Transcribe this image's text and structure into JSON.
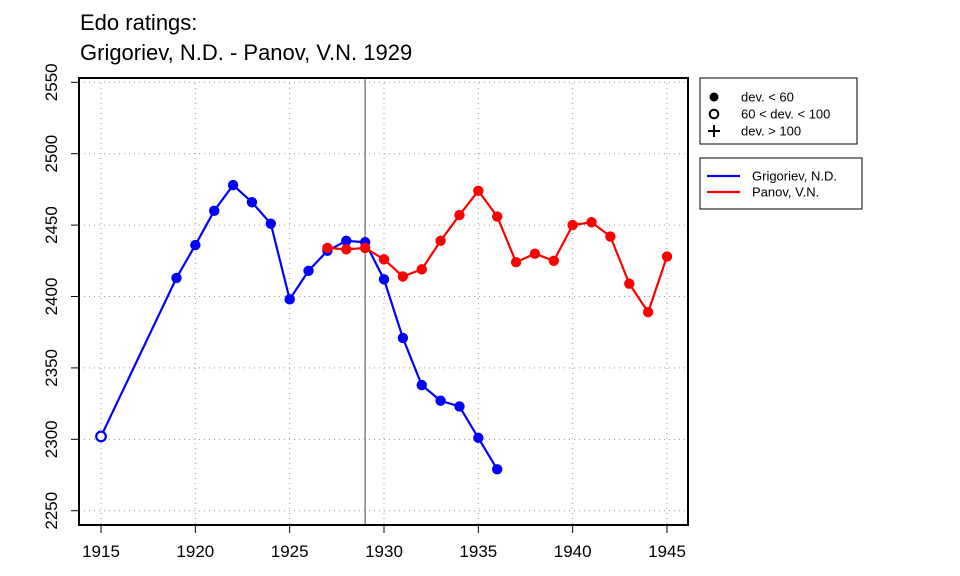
{
  "title": {
    "line1": "Edo ratings:",
    "line2": "Grigoriev, N.D. - Panov, V.N. 1929"
  },
  "chart_data": {
    "type": "line",
    "title": "Edo ratings: Grigoriev, N.D. - Panov, V.N. 1929",
    "xlabel": "",
    "ylabel": "",
    "xlim": [
      1915,
      1945
    ],
    "ylim": [
      2240,
      2553
    ],
    "x_ticks": [
      1915,
      1920,
      1925,
      1930,
      1935,
      1940,
      1945
    ],
    "y_ticks": [
      2250,
      2300,
      2350,
      2400,
      2450,
      2500,
      2550
    ],
    "grid": true,
    "vertical_marker": 1929,
    "symbol_legend": {
      "placement": "top-right",
      "entries": [
        {
          "symbol": "filled-circle",
          "label": "dev. < 60"
        },
        {
          "symbol": "open-circle",
          "label": "60 < dev. < 100"
        },
        {
          "symbol": "plus",
          "label": "dev. > 100"
        }
      ]
    },
    "series_legend": {
      "placement": "top-right",
      "entries": [
        {
          "label": "Grigoriev, N.D.",
          "color": "#0000ff"
        },
        {
          "label": "Panov, V.N.",
          "color": "#ff0000"
        }
      ]
    },
    "series": [
      {
        "name": "Grigoriev, N.D.",
        "color": "#0000ff",
        "points": [
          {
            "x": 1915,
            "y": 2302,
            "symbol": "open-circle"
          },
          {
            "x": 1919,
            "y": 2413,
            "symbol": "filled-circle"
          },
          {
            "x": 1920,
            "y": 2436,
            "symbol": "filled-circle"
          },
          {
            "x": 1921,
            "y": 2460,
            "symbol": "filled-circle"
          },
          {
            "x": 1922,
            "y": 2478,
            "symbol": "filled-circle"
          },
          {
            "x": 1923,
            "y": 2466,
            "symbol": "filled-circle"
          },
          {
            "x": 1924,
            "y": 2451,
            "symbol": "filled-circle"
          },
          {
            "x": 1925,
            "y": 2398,
            "symbol": "filled-circle"
          },
          {
            "x": 1926,
            "y": 2418,
            "symbol": "filled-circle"
          },
          {
            "x": 1927,
            "y": 2432,
            "symbol": "filled-circle"
          },
          {
            "x": 1928,
            "y": 2439,
            "symbol": "filled-circle"
          },
          {
            "x": 1929,
            "y": 2438,
            "symbol": "filled-circle"
          },
          {
            "x": 1930,
            "y": 2412,
            "symbol": "filled-circle"
          },
          {
            "x": 1931,
            "y": 2371,
            "symbol": "filled-circle"
          },
          {
            "x": 1932,
            "y": 2338,
            "symbol": "filled-circle"
          },
          {
            "x": 1933,
            "y": 2327,
            "symbol": "filled-circle"
          },
          {
            "x": 1934,
            "y": 2323,
            "symbol": "filled-circle"
          },
          {
            "x": 1935,
            "y": 2301,
            "symbol": "filled-circle"
          },
          {
            "x": 1936,
            "y": 2279,
            "symbol": "filled-circle"
          }
        ]
      },
      {
        "name": "Panov, V.N.",
        "color": "#ff0000",
        "points": [
          {
            "x": 1927,
            "y": 2434,
            "symbol": "filled-circle"
          },
          {
            "x": 1928,
            "y": 2433,
            "symbol": "filled-circle"
          },
          {
            "x": 1929,
            "y": 2434,
            "symbol": "filled-circle"
          },
          {
            "x": 1930,
            "y": 2426,
            "symbol": "filled-circle"
          },
          {
            "x": 1931,
            "y": 2414,
            "symbol": "filled-circle"
          },
          {
            "x": 1932,
            "y": 2419,
            "symbol": "filled-circle"
          },
          {
            "x": 1933,
            "y": 2439,
            "symbol": "filled-circle"
          },
          {
            "x": 1934,
            "y": 2457,
            "symbol": "filled-circle"
          },
          {
            "x": 1935,
            "y": 2474,
            "symbol": "filled-circle"
          },
          {
            "x": 1936,
            "y": 2456,
            "symbol": "filled-circle"
          },
          {
            "x": 1937,
            "y": 2424,
            "symbol": "filled-circle"
          },
          {
            "x": 1938,
            "y": 2430,
            "symbol": "filled-circle"
          },
          {
            "x": 1939,
            "y": 2425,
            "symbol": "filled-circle"
          },
          {
            "x": 1940,
            "y": 2450,
            "symbol": "filled-circle"
          },
          {
            "x": 1941,
            "y": 2452,
            "symbol": "filled-circle"
          },
          {
            "x": 1942,
            "y": 2442,
            "symbol": "filled-circle"
          },
          {
            "x": 1943,
            "y": 2409,
            "symbol": "filled-circle"
          },
          {
            "x": 1944,
            "y": 2389,
            "symbol": "filled-circle"
          },
          {
            "x": 1945,
            "y": 2428,
            "symbol": "filled-circle"
          }
        ]
      }
    ]
  }
}
